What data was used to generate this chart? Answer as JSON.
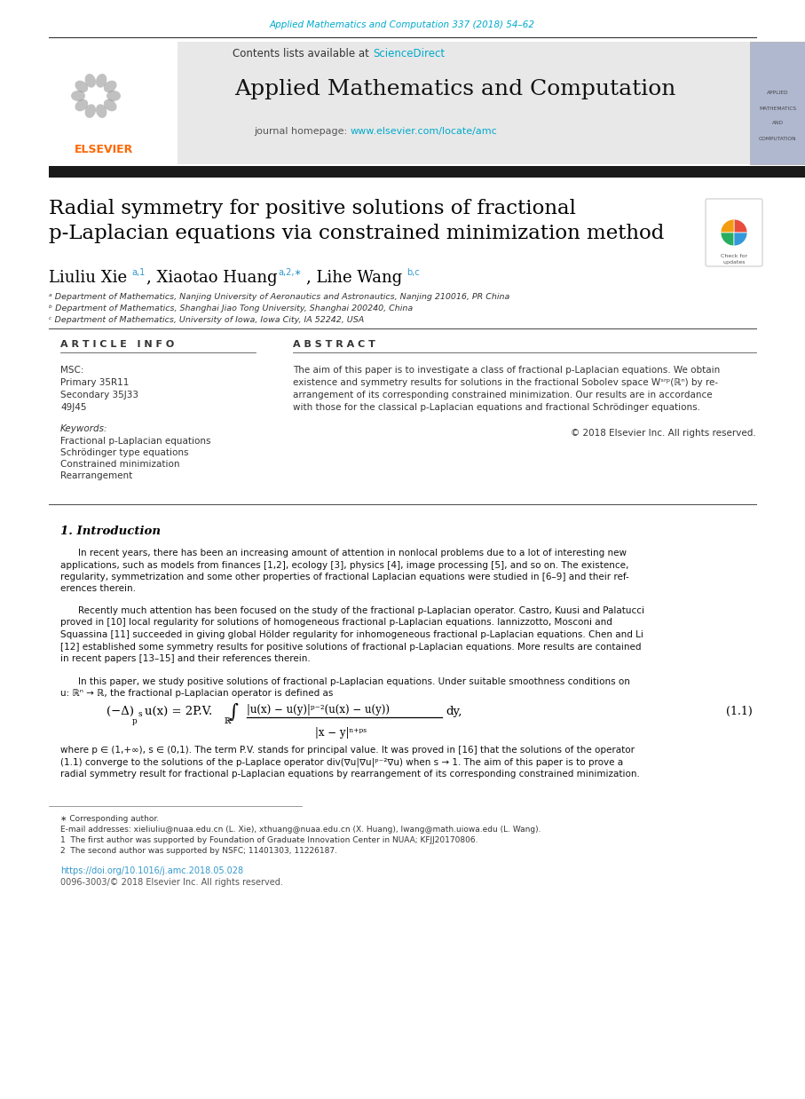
{
  "page_bg": "#ffffff",
  "top_journal_ref": "Applied Mathematics and Computation 337 (2018) 54–62",
  "top_journal_ref_color": "#00aacc",
  "header_bg": "#e8e8e8",
  "journal_title": "Applied Mathematics and Computation",
  "journal_homepage_url": "www.elsevier.com/locate/amc",
  "journal_homepage_color": "#00aacc",
  "sciencedirect_color": "#00aacc",
  "thick_bar_color": "#1a1a1a",
  "paper_title_line1": "Radial symmetry for positive solutions of fractional",
  "paper_title_line2": "p-Laplacian equations via constrained minimization method",
  "paper_title_color": "#000000",
  "affil_a": "ᵃ Department of Mathematics, Nanjing University of Aeronautics and Astronautics, Nanjing 210016, PR China",
  "affil_b": "ᵇ Department of Mathematics, Shanghai Jiao Tong University, Shanghai 200240, China",
  "affil_c": "ᶜ Department of Mathematics, University of Iowa, Iowa City, IA 52242, USA",
  "article_info_title": "A R T I C L E   I N F O",
  "abstract_title": "A B S T R A C T",
  "msc_primary": "Primary 35R11",
  "msc_secondary": "Secondary 35J33",
  "msc_code": "49J45",
  "keyword1": "Fractional p-Laplacian equations",
  "keyword2": "Schrödinger type equations",
  "keyword3": "Constrained minimization",
  "keyword4": "Rearrangement",
  "abstract_text": "The aim of this paper is to investigate a class of fractional p-Laplacian equations. We obtain\nexistence and symmetry results for solutions in the fractional Sobolev space Wˢʳᵖ(ℝⁿ) by re-\narrangement of its corresponding constrained minimization. Our results are in accordance\nwith those for the classical p-Laplacian equations and fractional Schrödinger equations.",
  "copyright": "© 2018 Elsevier Inc. All rights reserved.",
  "section1_title": "1. Introduction",
  "intro_p1": "In recent years, there has been an increasing amount of attention in nonlocal problems due to a lot of interesting new\napplications, such as models from finances [1,2], ecology [3], physics [4], image processing [5], and so on. The existence,\nregularity, symmetrization and some other properties of fractional Laplacian equations were studied in [6–9] and their ref-\nerences therein.",
  "intro_p2": "Recently much attention has been focused on the study of the fractional p-Laplacian operator. Castro, Kuusi and Palatucci\nproved in [10] local regularity for solutions of homogeneous fractional p-Laplacian equations. Iannizzotto, Mosconi and\nSquassina [11] succeeded in giving global Hölder regularity for inhomogeneous fractional p-Laplacian equations. Chen and Li\n[12] established some symmetry results for positive solutions of fractional p-Laplacian equations. More results are contained\nin recent papers [13–15] and their references therein.",
  "intro_p3": "In this paper, we study positive solutions of fractional p-Laplacian equations. Under suitable smoothness conditions on\nu: ℝⁿ → ℝ, the fractional p-Laplacian operator is defined as",
  "eq_number": "(1.1)",
  "where_text": "where p ∈ (1,+∞), s ∈ (0,1). The term P.V. stands for principal value. It was proved in [16] that the solutions of the operator\n(1.1) converge to the solutions of the p-Laplace operator div(∇u|∇u|ᵖ⁻²∇u) when s → 1. The aim of this paper is to prove a\nradial symmetry result for fractional p-Laplacian equations by rearrangement of its corresponding constrained minimization.",
  "footnote_star": "∗ Corresponding author.",
  "footnote_email": "E-mail addresses: xieliuliu@nuaa.edu.cn (L. Xie), xthuang@nuaa.edu.cn (X. Huang), lwang@math.uiowa.edu (L. Wang).",
  "footnote_1": "1  The first author was supported by Foundation of Graduate Innovation Center in NUAA; KFJJ20170806.",
  "footnote_2": "2  The second author was supported by NSFC; 11401303, 11226187.",
  "doi": "https://doi.org/10.1016/j.amc.2018.05.028",
  "issn": "0096-3003/© 2018 Elsevier Inc. All rights reserved.",
  "elsevier_orange": "#FF6600",
  "thumb_bg": "#b0b8d0"
}
